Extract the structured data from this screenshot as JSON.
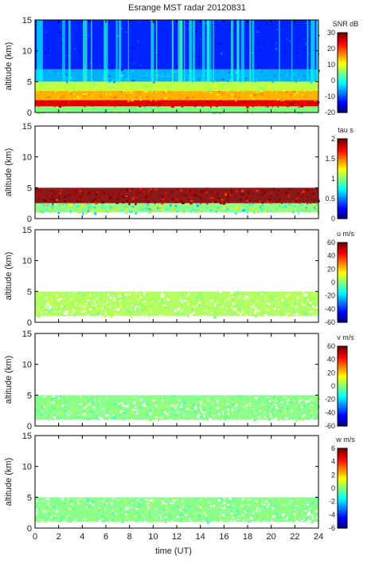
{
  "figure": {
    "title": "Esrange MST radar 20120831",
    "xlabel": "time (UT)",
    "x_ticks": [
      0,
      2,
      4,
      6,
      8,
      10,
      12,
      14,
      16,
      18,
      20,
      22,
      24
    ]
  },
  "chart_data": [
    {
      "type": "heatmap",
      "quantity": "SNR",
      "ylabel": "altitude (km)",
      "xlim": [
        0,
        24
      ],
      "ylim": [
        0,
        15
      ],
      "y_ticks": [
        0,
        5,
        10,
        15
      ],
      "colorbar": {
        "label": "SNR dB",
        "range": [
          -20,
          30
        ],
        "ticks": [
          -20,
          -10,
          0,
          10,
          20,
          30
        ]
      },
      "layers": [
        {
          "alt_km": [
            0,
            1
          ],
          "snr_db": 5
        },
        {
          "alt_km": [
            1,
            2
          ],
          "snr_db": 25
        },
        {
          "alt_km": [
            2,
            3.5
          ],
          "snr_db": 15
        },
        {
          "alt_km": [
            3.5,
            5
          ],
          "snr_db": 8
        },
        {
          "alt_km": [
            5,
            7
          ],
          "snr_db": -5
        },
        {
          "alt_km": [
            7,
            15
          ],
          "snr_db": -12
        }
      ]
    },
    {
      "type": "heatmap",
      "quantity": "tau",
      "ylabel": "altitude (km)",
      "xlim": [
        0,
        24
      ],
      "ylim": [
        0,
        15
      ],
      "y_ticks": [
        0,
        5,
        10,
        15
      ],
      "colorbar": {
        "label": "tau s",
        "range": [
          0,
          2
        ],
        "ticks": [
          0,
          0.5,
          1,
          1.5,
          2
        ]
      },
      "layers": [
        {
          "alt_km": [
            1,
            2.5
          ],
          "tau_s": 1.0
        },
        {
          "alt_km": [
            2.5,
            5
          ],
          "tau_s": 2.0
        }
      ]
    },
    {
      "type": "heatmap",
      "quantity": "u",
      "ylabel": "altitude (km)",
      "xlim": [
        0,
        24
      ],
      "ylim": [
        0,
        15
      ],
      "y_ticks": [
        0,
        5,
        10,
        15
      ],
      "colorbar": {
        "label": "u m/s",
        "range": [
          -60,
          60
        ],
        "ticks": [
          -60,
          -40,
          -20,
          0,
          20,
          40,
          60
        ]
      },
      "layers": [
        {
          "alt_km": [
            1,
            5
          ],
          "u_ms": 5
        }
      ]
    },
    {
      "type": "heatmap",
      "quantity": "v",
      "ylabel": "altitude (km)",
      "xlim": [
        0,
        24
      ],
      "ylim": [
        0,
        15
      ],
      "y_ticks": [
        0,
        5,
        10,
        15
      ],
      "colorbar": {
        "label": "v m/s",
        "range": [
          -60,
          60
        ],
        "ticks": [
          -60,
          -40,
          -20,
          0,
          20,
          40,
          60
        ]
      },
      "layers": [
        {
          "alt_km": [
            1,
            5
          ],
          "v_ms": 0
        }
      ]
    },
    {
      "type": "heatmap",
      "quantity": "w",
      "ylabel": "altitude (km)",
      "xlim": [
        0,
        24
      ],
      "ylim": [
        0,
        15
      ],
      "y_ticks": [
        0,
        5,
        10,
        15
      ],
      "colorbar": {
        "label": "w m/s",
        "range": [
          -6,
          6
        ],
        "ticks": [
          -6,
          -4,
          -2,
          0,
          2,
          4,
          6
        ]
      },
      "layers": [
        {
          "alt_km": [
            1,
            5
          ],
          "w_ms": 0
        }
      ]
    }
  ],
  "colors": {
    "jet": [
      "#00007f",
      "#0000ff",
      "#007fff",
      "#00ffff",
      "#7fff7f",
      "#ffff00",
      "#ff7f00",
      "#ff0000",
      "#7f0000"
    ]
  }
}
